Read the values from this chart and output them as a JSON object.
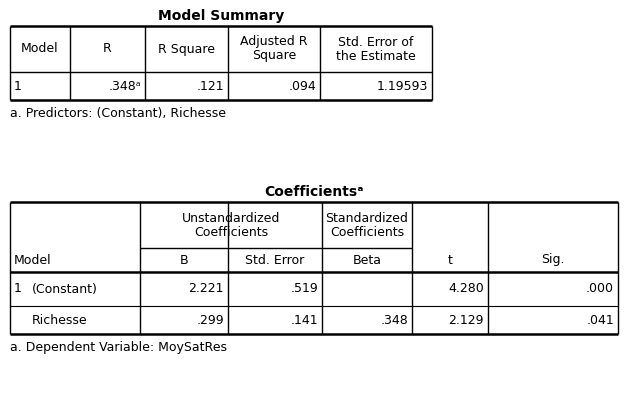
{
  "table1_title": "Model Summary",
  "table1_footnote": "a. Predictors: (Constant), Richesse",
  "table1_row": [
    "1",
    ".348ᵃ",
    ".121",
    ".094",
    "1.19593"
  ],
  "table2_title": "Coefficientsᵃ",
  "table2_footnote": "a. Dependent Variable: MoySatRes",
  "table2_rows": [
    [
      "1",
      "(Constant)",
      "2.221",
      ".519",
      "",
      "4.280",
      ".000"
    ],
    [
      "",
      "Richesse",
      ".299",
      ".141",
      ".348",
      "2.129",
      ".041"
    ]
  ],
  "bg_color": "#ffffff",
  "text_color": "#000000",
  "font_size": 9,
  "title_font_size": 10
}
